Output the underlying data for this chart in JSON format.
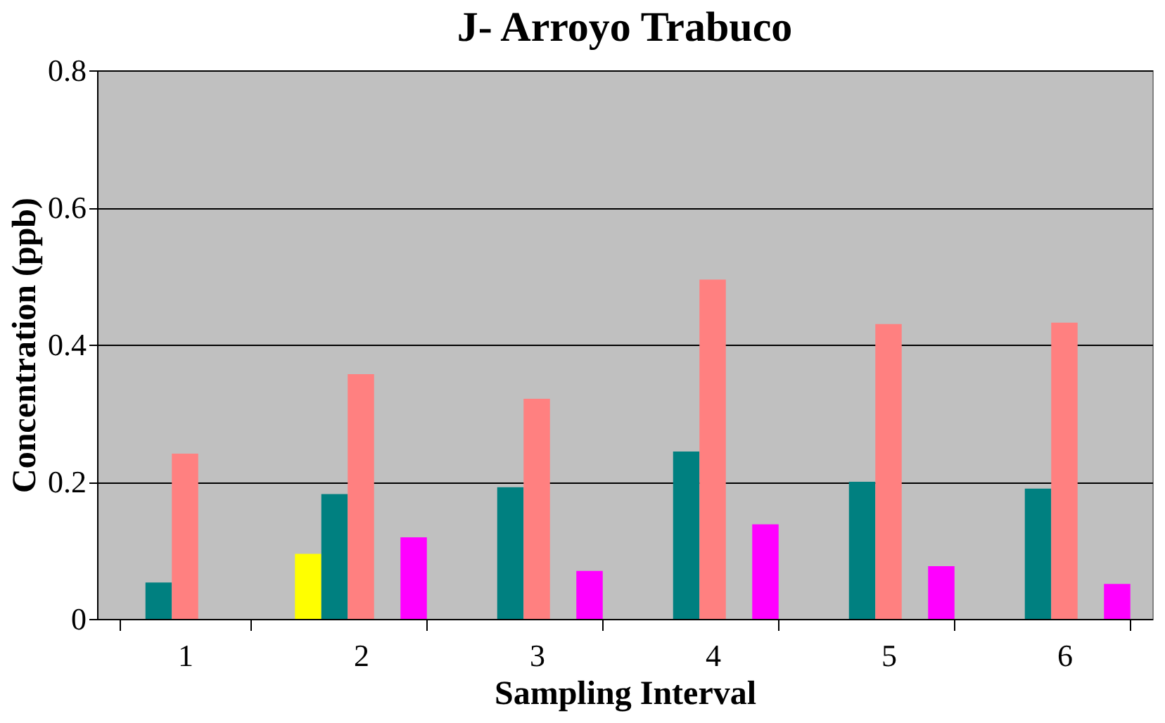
{
  "chart_data": {
    "type": "bar",
    "title": "J- Arroyo Trabuco",
    "xlabel": "Sampling Interval",
    "ylabel": "Concentration (ppb)",
    "categories": [
      "1",
      "2",
      "3",
      "4",
      "5",
      "6"
    ],
    "series": [
      {
        "color": "#ffff00",
        "values": [
          null,
          0.095,
          null,
          null,
          null,
          null
        ]
      },
      {
        "color": "#008080",
        "values": [
          0.053,
          0.182,
          0.192,
          0.244,
          0.2,
          0.19
        ]
      },
      {
        "color": "#ff8080",
        "values": [
          0.241,
          0.357,
          0.321,
          0.495,
          0.43,
          0.432
        ]
      },
      {
        "values": [
          null,
          null,
          null,
          null,
          null,
          null
        ]
      },
      {
        "color": "#ff00ff",
        "values": [
          null,
          0.119,
          0.07,
          0.138,
          0.077,
          0.051
        ]
      }
    ],
    "ylim": [
      0,
      0.8
    ],
    "yticks": [
      0,
      0.2,
      0.4,
      0.6,
      0.8
    ],
    "grid": "y"
  }
}
